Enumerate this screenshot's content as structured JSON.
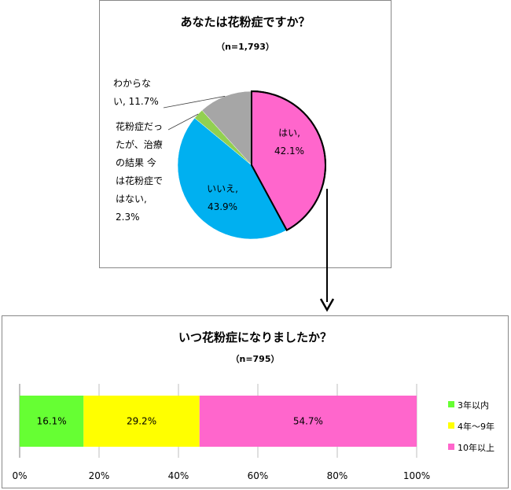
{
  "chart_data": [
    {
      "type": "pie",
      "title": "あなたは花粉症ですか？",
      "subtitle": "（n=1,793）",
      "slices": [
        {
          "label": "はい",
          "value": 42.1,
          "display": "42.1%",
          "color": "#FF66CC"
        },
        {
          "label": "いいえ",
          "value": 43.9,
          "display": "43.9%",
          "color": "#00B0F0"
        },
        {
          "label": "花粉症だったが、治療の結果 今は花粉症ではない",
          "value": 2.3,
          "display": "2.3%",
          "color": "#92D050"
        },
        {
          "label": "わからない",
          "value": 11.7,
          "display": "11.7%",
          "color": "#A6A6A6"
        }
      ],
      "label_lines": {
        "yes": [
          "はい,",
          "42.1%"
        ],
        "no": [
          "いいえ,",
          "43.9%"
        ],
        "former": [
          "花粉症だっ",
          "たが、治療",
          "の結果 今",
          "は花粉症で",
          "はない,",
          "2.3%"
        ],
        "unknown": [
          "わからな",
          "い, 11.7%"
        ]
      }
    },
    {
      "type": "bar",
      "orientation": "horizontal-stacked-100",
      "title": "いつ花粉症になりましたか？",
      "subtitle": "（n=795）",
      "series": [
        {
          "name": "3年以内",
          "value": 16.1,
          "display": "16.1%",
          "color": "#66FF33"
        },
        {
          "name": "4年～9年",
          "value": 29.2,
          "display": "29.2%",
          "color": "#FFFF00"
        },
        {
          "name": "10年以上",
          "value": 54.7,
          "display": "54.7%",
          "color": "#FF66CC"
        }
      ],
      "xlim": [
        0,
        100
      ],
      "xticks": [
        "0%",
        "20%",
        "40%",
        "60%",
        "80%",
        "100%"
      ],
      "grid": true,
      "legend": "right"
    }
  ]
}
